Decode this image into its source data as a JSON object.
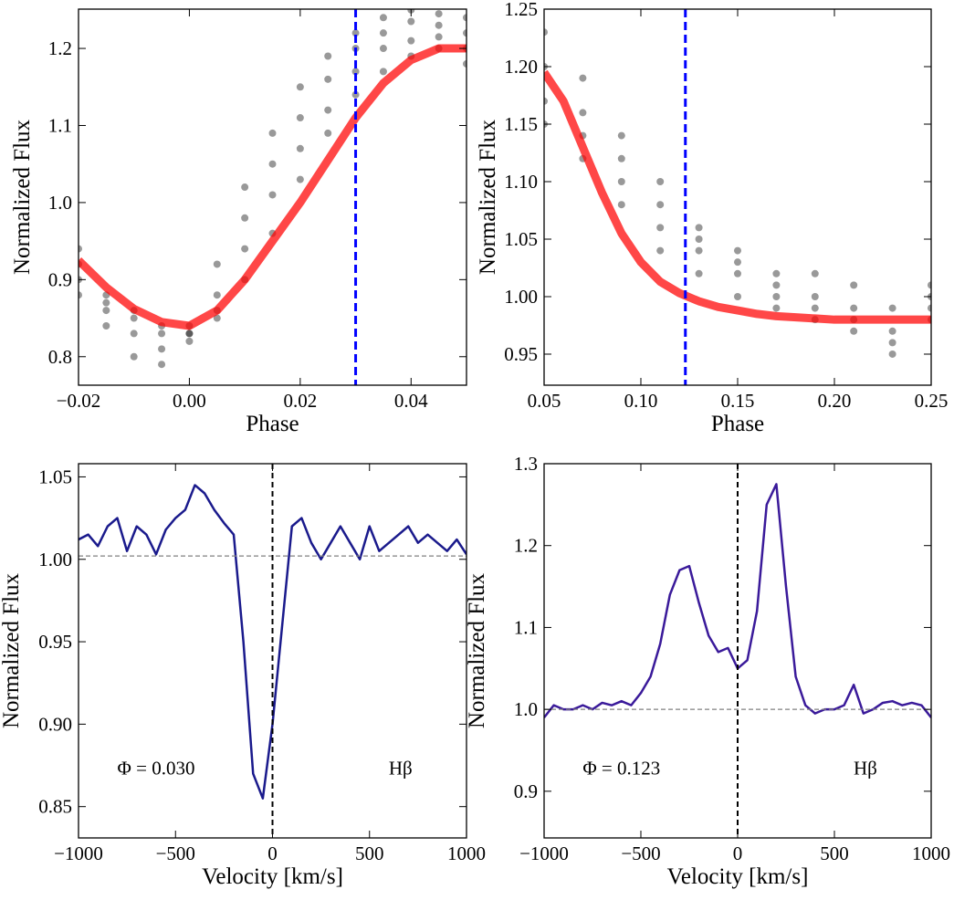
{
  "chart_data": [
    {
      "type": "scatter",
      "x_label": "Phase",
      "y_label": "Normalized Flux",
      "xlim": [
        -0.02,
        0.05
      ],
      "ylim": [
        0.763,
        1.251
      ],
      "xticks": [
        {
          "value": -0.02,
          "label": "−0.02"
        },
        {
          "value": 0,
          "label": "0.00"
        },
        0.02,
        0.04
      ],
      "yticks": [
        0.8,
        0.9,
        {
          "value": 1,
          "label": "1.0"
        },
        1.1,
        1.2
      ],
      "vline": {
        "value": 0.03,
        "color": "#0000ff"
      },
      "series": [
        {
          "mark": "points",
          "color": "#000000",
          "x": [
            -0.02,
            -0.015,
            -0.01,
            -0.005,
            0,
            0.005,
            0.01,
            0.015,
            0.02,
            0.025,
            0.03,
            0.035,
            0.04,
            0.045,
            0.05
          ],
          "values": [
            0.88,
            0.84,
            0.8,
            0.79,
            0.83,
            0.92,
            1.02,
            1.09,
            1.15,
            1.19,
            1.22,
            1.24,
            1.25,
            1.245,
            1.24
          ]
        },
        {
          "mark": "points",
          "color": "#000000",
          "x": [
            -0.02,
            -0.015,
            -0.01,
            -0.005,
            0,
            0.005,
            0.01,
            0.015,
            0.02,
            0.025,
            0.03,
            0.035,
            0.04,
            0.045,
            0.05
          ],
          "values": [
            0.9,
            0.86,
            0.83,
            0.81,
            0.82,
            0.88,
            0.98,
            1.05,
            1.11,
            1.16,
            1.2,
            1.22,
            1.235,
            1.23,
            1.22
          ]
        },
        {
          "mark": "points",
          "color": "#000000",
          "x": [
            -0.02,
            -0.015,
            -0.01,
            -0.005,
            0,
            0.005,
            0.01,
            0.015,
            0.02,
            0.025,
            0.03,
            0.035,
            0.04,
            0.045,
            0.05
          ],
          "values": [
            0.92,
            0.87,
            0.85,
            0.83,
            0.83,
            0.86,
            0.94,
            1.01,
            1.07,
            1.12,
            1.17,
            1.2,
            1.21,
            1.215,
            1.2
          ]
        },
        {
          "mark": "points",
          "color": "#000000",
          "x": [
            -0.02,
            -0.015,
            -0.01,
            -0.005,
            0,
            0.005,
            0.01,
            0.015,
            0.02,
            0.025,
            0.03,
            0.035,
            0.04,
            0.045,
            0.05
          ],
          "values": [
            0.94,
            0.88,
            0.86,
            0.84,
            0.84,
            0.85,
            0.9,
            0.96,
            1.03,
            1.09,
            1.14,
            1.17,
            1.19,
            1.2,
            1.18
          ]
        },
        {
          "mark": "line",
          "color": "#ff0000",
          "x": [
            -0.02,
            -0.015,
            -0.01,
            -0.005,
            0,
            0.005,
            0.01,
            0.015,
            0.02,
            0.025,
            0.03,
            0.035,
            0.04,
            0.045,
            0.05
          ],
          "values": [
            0.925,
            0.89,
            0.862,
            0.845,
            0.84,
            0.86,
            0.9,
            0.95,
            1.0,
            1.055,
            1.11,
            1.155,
            1.185,
            1.2,
            1.2
          ]
        }
      ]
    },
    {
      "type": "scatter",
      "x_label": "Phase",
      "y_label": "Normalized Flux",
      "xlim": [
        0.05,
        0.25
      ],
      "ylim": [
        0.923,
        1.25
      ],
      "xticks": [
        0.05,
        {
          "value": 0.1,
          "label": "0.10"
        },
        0.15,
        {
          "value": 0.2,
          "label": "0.20"
        },
        0.25
      ],
      "yticks": [
        0.95,
        {
          "value": 1,
          "label": "1.00"
        },
        1.05,
        {
          "value": 1.1,
          "label": "1.10"
        },
        1.15,
        {
          "value": 1.2,
          "label": "1.20"
        },
        1.25
      ],
      "vline": {
        "value": 0.123,
        "color": "#0000ff"
      },
      "series": [
        {
          "mark": "points",
          "color": "#000000",
          "x": [
            0.05,
            0.07,
            0.09,
            0.11,
            0.13,
            0.15,
            0.17,
            0.19,
            0.21,
            0.23,
            0.25
          ],
          "values": [
            1.23,
            1.19,
            1.14,
            1.1,
            1.06,
            1.03,
            1.02,
            1.0,
            0.99,
            0.97,
            0.99
          ]
        },
        {
          "mark": "points",
          "color": "#000000",
          "x": [
            0.05,
            0.07,
            0.09,
            0.11,
            0.13,
            0.15,
            0.17,
            0.19,
            0.21,
            0.23,
            0.25
          ],
          "values": [
            1.2,
            1.16,
            1.12,
            1.08,
            1.05,
            1.04,
            1.0,
            1.02,
            0.98,
            0.96,
            1.0
          ]
        },
        {
          "mark": "points",
          "color": "#000000",
          "x": [
            0.05,
            0.07,
            0.09,
            0.11,
            0.13,
            0.15,
            0.17,
            0.19,
            0.21,
            0.23,
            0.25
          ],
          "values": [
            1.17,
            1.14,
            1.1,
            1.06,
            1.04,
            1.02,
            1.01,
            0.99,
            1.01,
            0.95,
            0.98
          ]
        },
        {
          "mark": "points",
          "color": "#000000",
          "x": [
            0.05,
            0.07,
            0.09,
            0.11,
            0.13,
            0.15,
            0.17,
            0.19,
            0.21,
            0.23,
            0.25
          ],
          "values": [
            1.15,
            1.12,
            1.08,
            1.04,
            1.02,
            1.0,
            0.99,
            0.98,
            0.97,
            0.99,
            1.01
          ]
        },
        {
          "mark": "line",
          "color": "#ff0000",
          "x": [
            0.05,
            0.06,
            0.07,
            0.08,
            0.09,
            0.1,
            0.11,
            0.12,
            0.13,
            0.14,
            0.15,
            0.16,
            0.17,
            0.18,
            0.19,
            0.2,
            0.21,
            0.22,
            0.23,
            0.24,
            0.25
          ],
          "values": [
            1.195,
            1.17,
            1.13,
            1.09,
            1.055,
            1.03,
            1.013,
            1.003,
            0.996,
            0.991,
            0.988,
            0.985,
            0.983,
            0.982,
            0.981,
            0.98,
            0.98,
            0.98,
            0.98,
            0.98,
            0.98
          ]
        }
      ]
    },
    {
      "type": "line",
      "x_label": "Velocity [km/s]",
      "y_label": "Normalized Flux",
      "xlim": [
        -1000,
        1000
      ],
      "ylim": [
        0.831,
        1.058
      ],
      "xticks": [
        {
          "value": -1000,
          "label": "−1000"
        },
        {
          "value": -500,
          "label": "−500"
        },
        0,
        500,
        1000
      ],
      "yticks": [
        0.85,
        {
          "value": 0.9,
          "label": "0.90"
        },
        0.95,
        {
          "value": 1,
          "label": "1.00"
        },
        1.05
      ],
      "vline": {
        "value": 0,
        "color": "#000000"
      },
      "hline": {
        "value": 1.002,
        "color": "#808080"
      },
      "annotations": [
        "Φ = 0.030",
        "Hβ"
      ],
      "series": [
        {
          "mark": "line",
          "color": "#1a1a8c",
          "x": [
            -1000,
            -950,
            -900,
            -850,
            -800,
            -750,
            -700,
            -650,
            -600,
            -550,
            -500,
            -450,
            -400,
            -350,
            -300,
            -250,
            -200,
            -150,
            -100,
            -50,
            0,
            50,
            100,
            150,
            200,
            250,
            300,
            350,
            400,
            450,
            500,
            550,
            600,
            650,
            700,
            750,
            800,
            850,
            900,
            950,
            1000
          ],
          "values": [
            1.012,
            1.015,
            1.008,
            1.02,
            1.025,
            1.005,
            1.02,
            1.015,
            1.003,
            1.018,
            1.025,
            1.03,
            1.045,
            1.04,
            1.03,
            1.022,
            1.015,
            0.95,
            0.87,
            0.855,
            0.9,
            0.96,
            1.02,
            1.025,
            1.01,
            1.0,
            1.01,
            1.02,
            1.01,
            1.0,
            1.02,
            1.005,
            1.01,
            1.015,
            1.02,
            1.01,
            1.015,
            1.01,
            1.005,
            1.012,
            1.003
          ]
        }
      ]
    },
    {
      "type": "line",
      "x_label": "Velocity [km/s]",
      "y_label": "Normalized Flux",
      "xlim": [
        -1000,
        1000
      ],
      "ylim": [
        0.843,
        1.3
      ],
      "xticks": [
        {
          "value": -1000,
          "label": "−1000"
        },
        {
          "value": -500,
          "label": "−500"
        },
        0,
        500,
        1000
      ],
      "yticks": [
        0.9,
        {
          "value": 1,
          "label": "1.0"
        },
        1.1,
        1.2,
        1.3
      ],
      "vline": {
        "value": 0,
        "color": "#000000"
      },
      "hline": {
        "value": 1,
        "color": "#808080"
      },
      "annotations": [
        "Φ = 0.123",
        "Hβ"
      ],
      "series": [
        {
          "mark": "line",
          "color": "#3a1a9a",
          "x": [
            -1000,
            -950,
            -900,
            -850,
            -800,
            -750,
            -700,
            -650,
            -600,
            -550,
            -500,
            -450,
            -400,
            -350,
            -300,
            -250,
            -200,
            -150,
            -100,
            -50,
            0,
            50,
            100,
            150,
            200,
            250,
            300,
            350,
            400,
            450,
            500,
            550,
            600,
            650,
            700,
            750,
            800,
            850,
            900,
            950,
            1000
          ],
          "values": [
            0.99,
            1.005,
            1.0,
            1.0,
            1.005,
            1.0,
            1.008,
            1.005,
            1.01,
            1.005,
            1.02,
            1.04,
            1.08,
            1.14,
            1.17,
            1.175,
            1.13,
            1.09,
            1.07,
            1.075,
            1.05,
            1.06,
            1.12,
            1.25,
            1.275,
            1.15,
            1.04,
            1.005,
            0.995,
            1.0,
            1.0,
            1.005,
            1.03,
            0.995,
            1.0,
            1.008,
            1.01,
            1.005,
            1.008,
            1.005,
            0.99
          ]
        }
      ]
    }
  ]
}
